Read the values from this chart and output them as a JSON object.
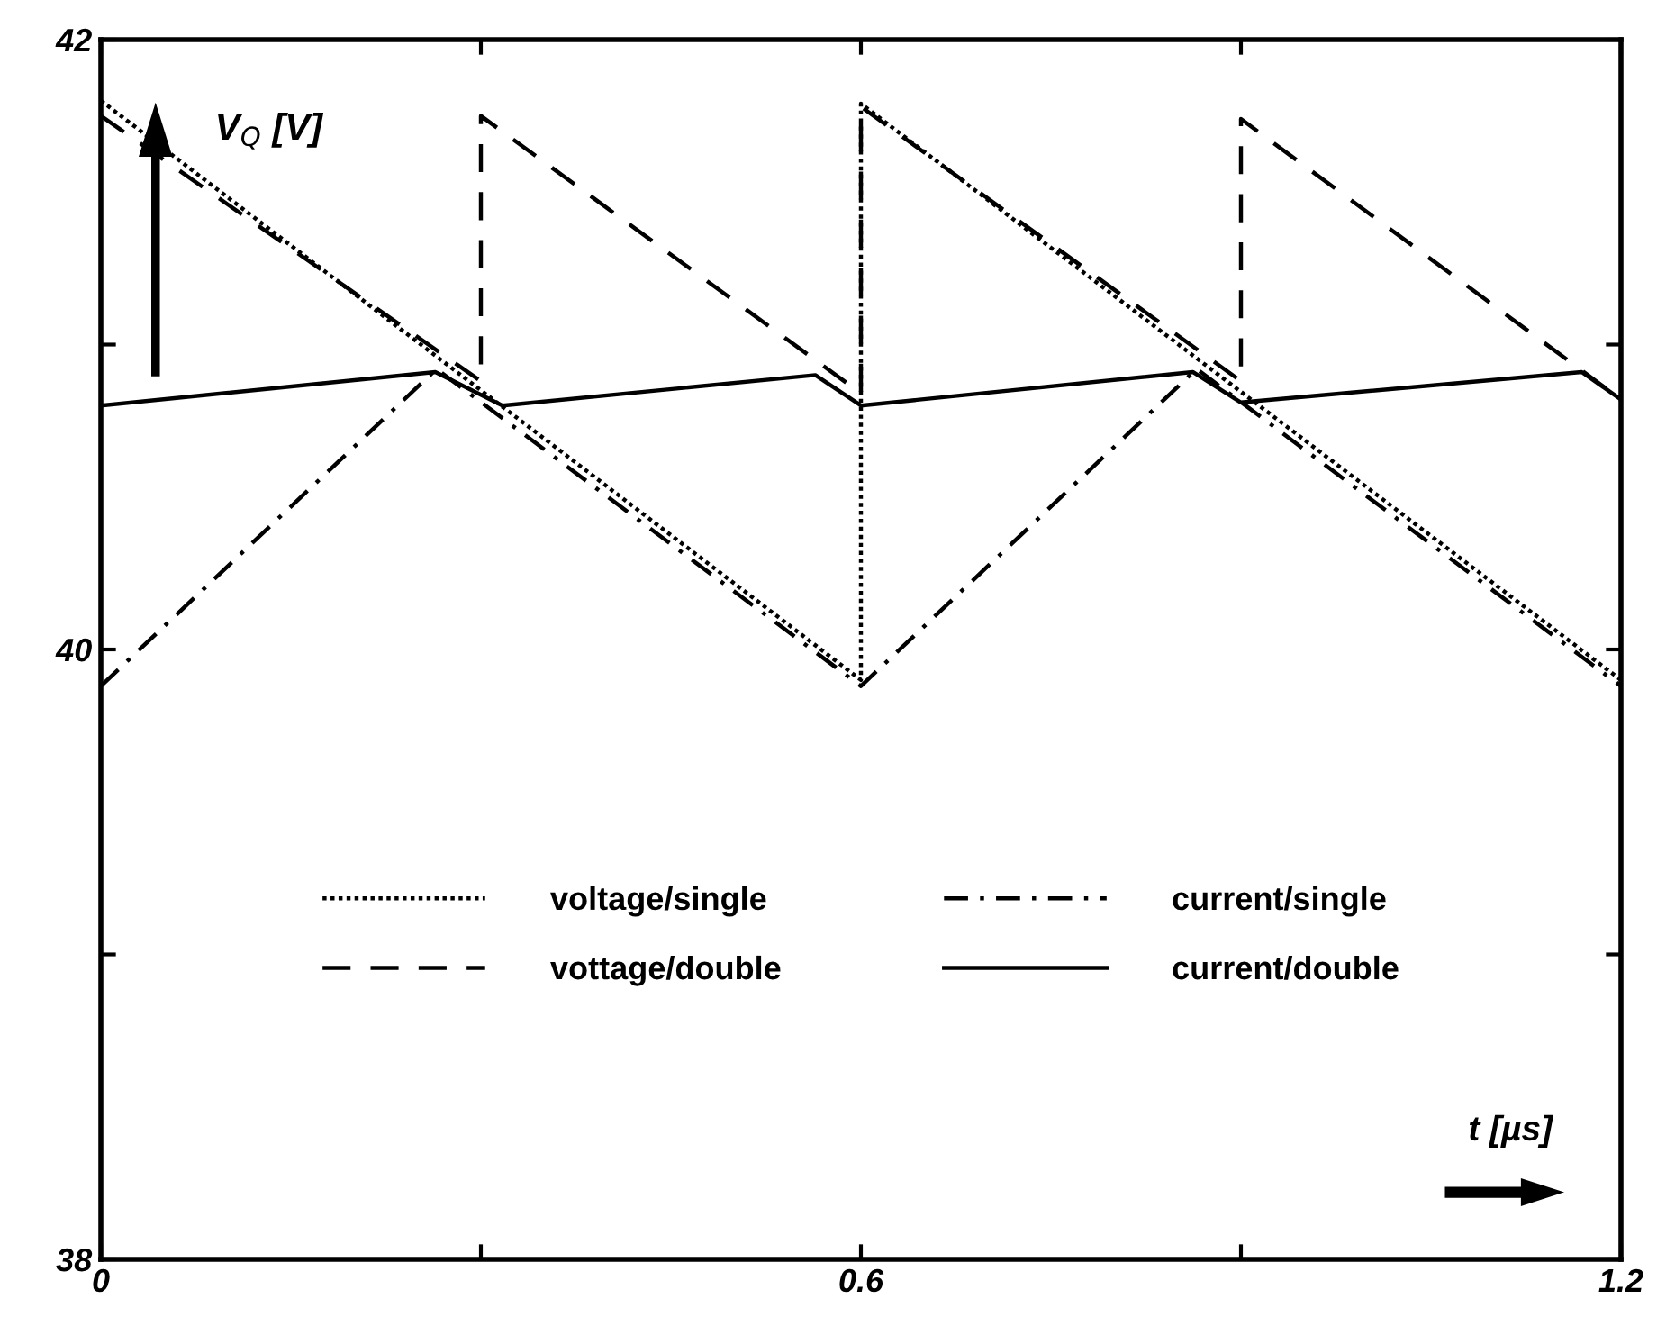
{
  "chart_data": {
    "type": "line",
    "xlabel": "t [µs]",
    "ylabel": "V$_{Q}$ [V]",
    "xlim": [
      0,
      1.2
    ],
    "ylim": [
      38,
      42
    ],
    "xticks": [
      0,
      {
        "value": 0.3,
        "label": null
      },
      0.6,
      {
        "value": 0.9,
        "label": null
      },
      1.2
    ],
    "yticks": [
      38,
      {
        "value": 39,
        "label": null
      },
      40,
      {
        "value": 41,
        "label": null
      },
      42
    ],
    "grid": false,
    "legend": "bottom",
    "marker": "none",
    "series": [
      {
        "name": "voltage/single",
        "color": "#000000",
        "line_style": "dotted",
        "x": [
          0,
          0.6,
          0.6,
          1.2
        ],
        "values": [
          41.8,
          39.9,
          41.79,
          39.9
        ]
      },
      {
        "name": "vottage/double",
        "color": "#000000",
        "line_style": "dashed",
        "x": [
          0,
          0.3,
          0.3,
          0.6,
          0.6,
          0.9,
          0.9,
          1.2
        ],
        "values": [
          41.75,
          40.88,
          41.75,
          40.84,
          41.78,
          40.88,
          41.74,
          40.82
        ]
      },
      {
        "name": "current/single",
        "color": "#000000",
        "line_style": "dashdot",
        "x": [
          0,
          0.265,
          0.6,
          0.865,
          1.2
        ],
        "values": [
          39.88,
          40.92,
          39.88,
          40.92,
          39.88
        ]
      },
      {
        "name": "current/double",
        "color": "#000000",
        "line_style": "solid",
        "x": [
          0,
          0.264,
          0.317,
          0.564,
          0.6,
          0.862,
          0.9,
          1.169,
          1.2
        ],
        "values": [
          40.8,
          40.91,
          40.8,
          40.9,
          40.8,
          40.91,
          40.81,
          40.91,
          40.82
        ]
      }
    ]
  }
}
